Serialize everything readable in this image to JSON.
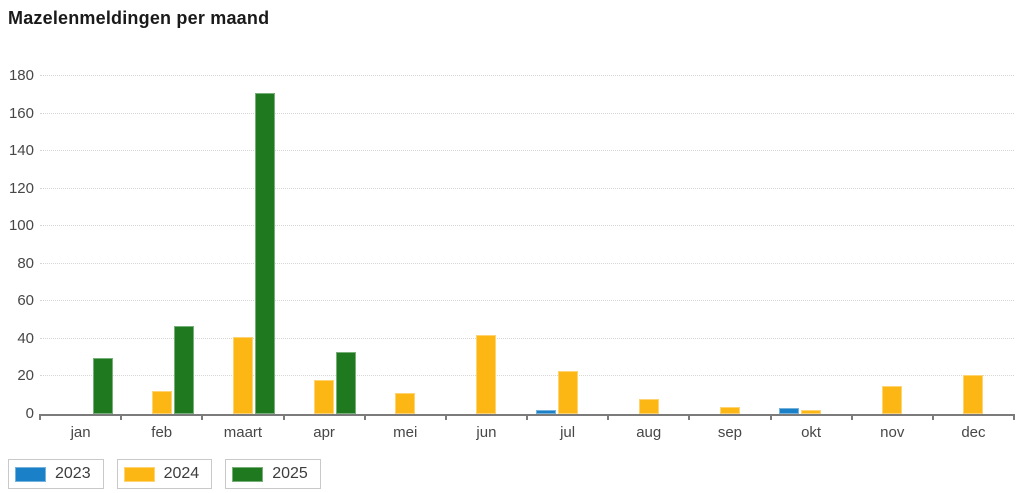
{
  "title": "Mazelenmeldingen per maand",
  "chart_data": {
    "type": "bar",
    "title": "Mazelenmeldingen per maand",
    "categories": [
      "jan",
      "feb",
      "maart",
      "apr",
      "mei",
      "jun",
      "jul",
      "aug",
      "sep",
      "okt",
      "nov",
      "dec"
    ],
    "series": [
      {
        "name": "2023",
        "color": "#1a80c7",
        "values": [
          0,
          0,
          0,
          0,
          0,
          0,
          2,
          0,
          0,
          3,
          0,
          0
        ]
      },
      {
        "name": "2024",
        "color": "#fdb714",
        "values": [
          0,
          12,
          41,
          18,
          11,
          42,
          23,
          8,
          4,
          2,
          15,
          21
        ]
      },
      {
        "name": "2025",
        "color": "#1f7a1f",
        "values": [
          30,
          47,
          171,
          33,
          0,
          0,
          0,
          0,
          0,
          0,
          0,
          0
        ]
      }
    ],
    "xlabel": "",
    "ylabel": "",
    "ylim": [
      0,
      180
    ],
    "yticks": [
      0,
      20,
      40,
      60,
      80,
      100,
      120,
      140,
      160,
      180
    ],
    "grid": "horizontal-dotted",
    "legend_position": "bottom-left",
    "legend_labels": [
      "2023",
      "2024",
      "2025"
    ]
  }
}
